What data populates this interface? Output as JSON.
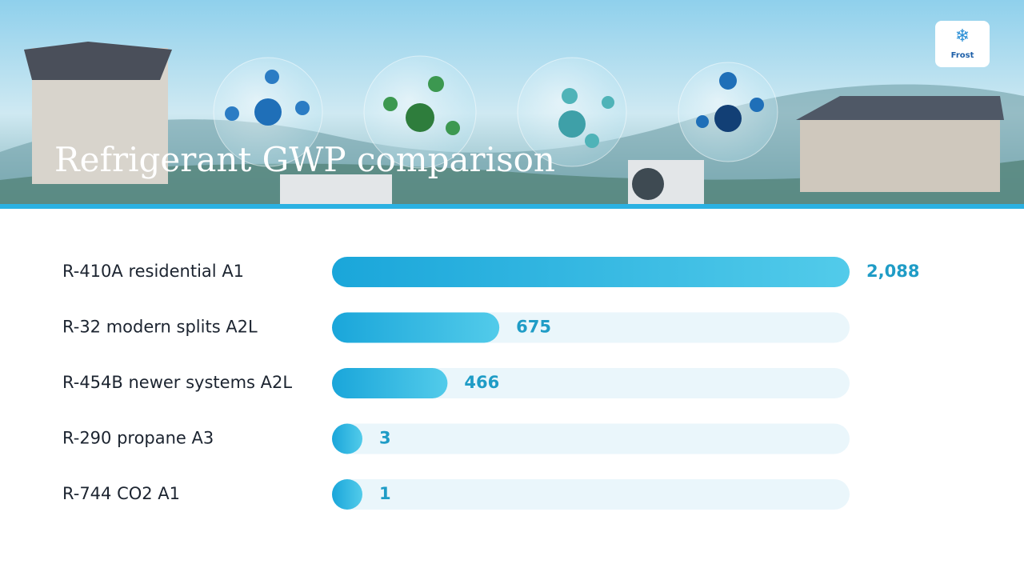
{
  "brand": "Frost",
  "chart_data": {
    "type": "bar",
    "orientation": "horizontal",
    "title": "Refrigerant GWP comparison",
    "categories": [
      "R-410A residential A1",
      "R-32 modern splits A2L",
      "R-454B newer systems A2L",
      "R-290 propane A3",
      "R-744 CO2 A1"
    ],
    "values": [
      2088,
      675,
      466,
      3,
      1
    ],
    "value_labels": [
      "2,088",
      "675",
      "466",
      "3",
      "1"
    ],
    "color": "#29b3e2"
  }
}
